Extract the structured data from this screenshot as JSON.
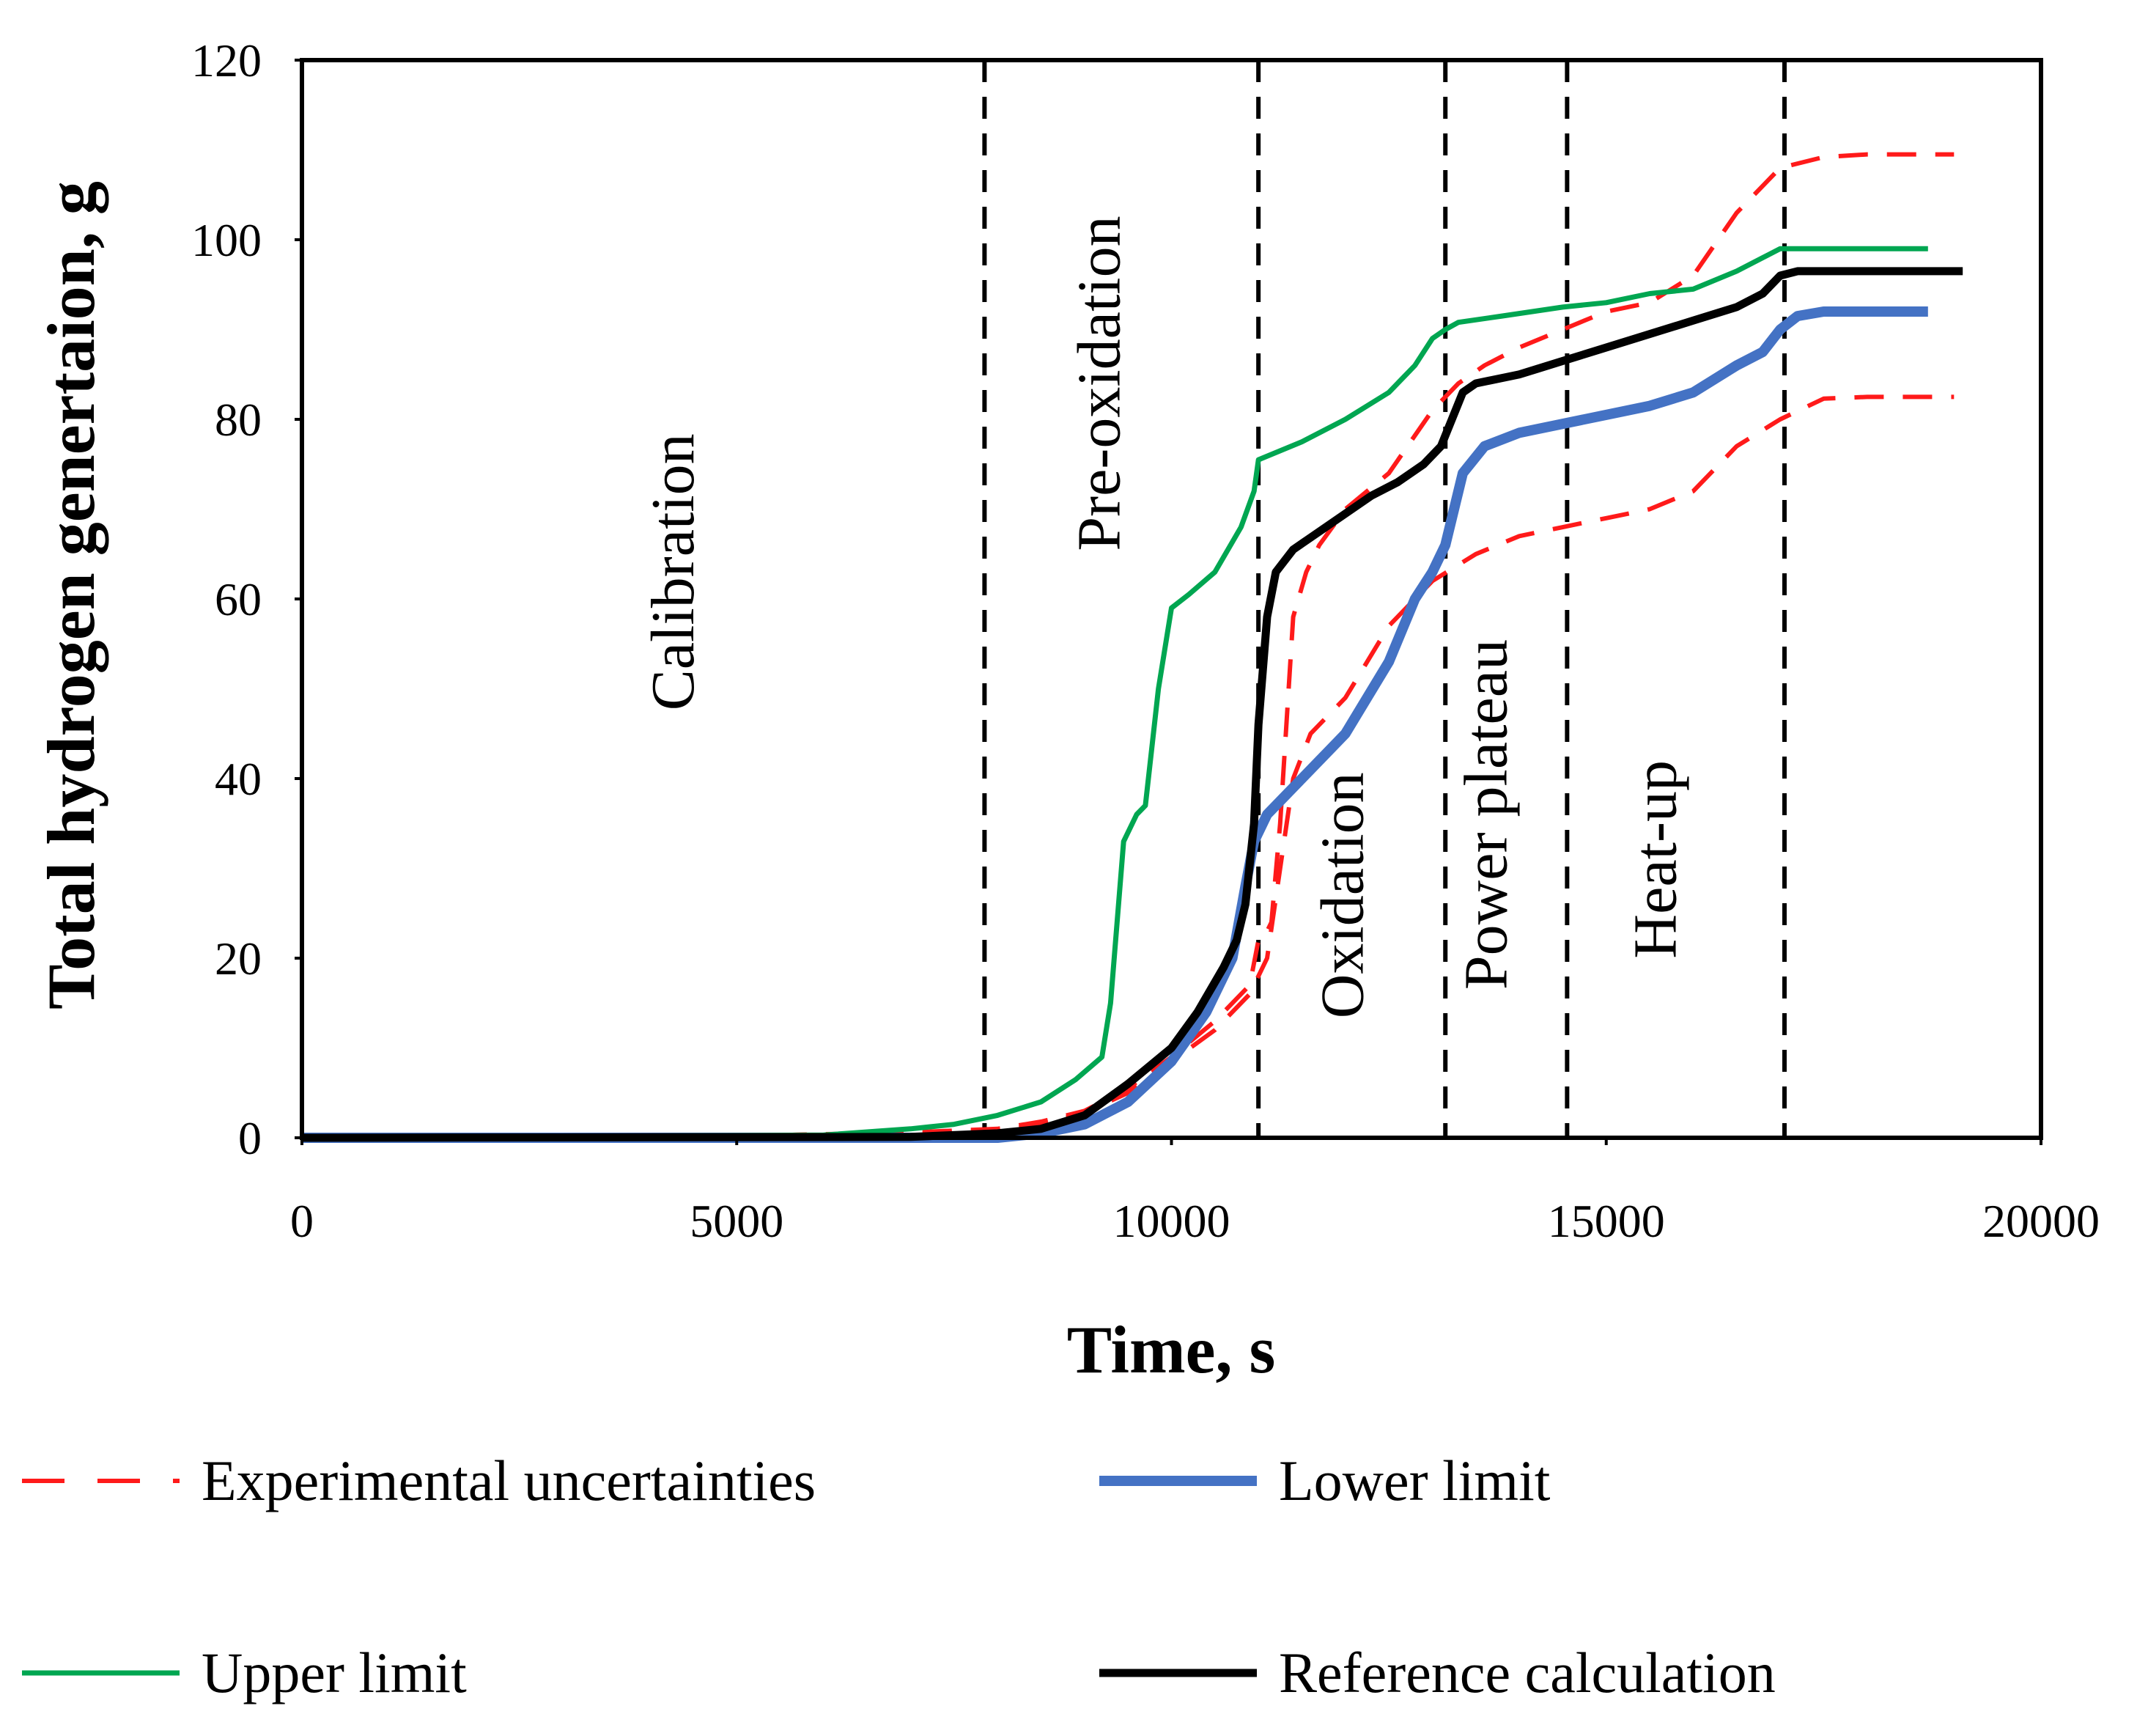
{
  "chart_data": {
    "type": "line",
    "title": "",
    "xlabel": "Time, s",
    "ylabel": "Total hydrogen genertaion, g",
    "xlim": [
      0,
      20000
    ],
    "ylim": [
      0,
      120
    ],
    "xticks": [
      0,
      5000,
      10000,
      15000,
      20000
    ],
    "yticks": [
      0,
      20,
      40,
      60,
      80,
      100,
      120
    ],
    "grid": false,
    "legend_position": "bottom",
    "phase_boundaries": [
      7850,
      11000,
      13150,
      14550,
      17050
    ],
    "phases": [
      {
        "label": "Calibration",
        "x": 4500,
        "y": 63
      },
      {
        "label": "Pre-oxidation",
        "x": 9400,
        "y": 84
      },
      {
        "label": "Oxidation",
        "x": 12200,
        "y": 27
      },
      {
        "label": "Power plateau",
        "x": 13850,
        "y": 36
      },
      {
        "label": "Heat-up",
        "x": 15800,
        "y": 31
      }
    ],
    "series": [
      {
        "name": "Experimental uncertainties (upper)",
        "legend": "Experimental uncertainties",
        "color": "#ff1a1a",
        "width": 6,
        "dash": "40,26",
        "points": [
          [
            3800,
            0.3
          ],
          [
            5000,
            0.2
          ],
          [
            6000,
            0.4
          ],
          [
            7000,
            0.6
          ],
          [
            8000,
            1
          ],
          [
            8500,
            1.8
          ],
          [
            9000,
            3
          ],
          [
            9500,
            5.5
          ],
          [
            10000,
            9
          ],
          [
            10500,
            13
          ],
          [
            10900,
            17
          ],
          [
            11000,
            22
          ],
          [
            11050,
            22
          ],
          [
            11150,
            24
          ],
          [
            11250,
            35
          ],
          [
            11400,
            58
          ],
          [
            11550,
            63
          ],
          [
            11700,
            66
          ],
          [
            12000,
            70
          ],
          [
            12500,
            74
          ],
          [
            13000,
            81
          ],
          [
            13300,
            84
          ],
          [
            13600,
            86
          ],
          [
            14000,
            88
          ],
          [
            14500,
            90
          ],
          [
            15000,
            92
          ],
          [
            15500,
            93
          ],
          [
            16000,
            96
          ],
          [
            16500,
            103
          ],
          [
            17000,
            108
          ],
          [
            17500,
            109.2
          ],
          [
            18000,
            109.5
          ],
          [
            19000,
            109.5
          ]
        ]
      },
      {
        "name": "Experimental uncertainties (lower)",
        "legend": "",
        "color": "#ff1a1a",
        "width": 6,
        "dash": "40,26",
        "points": [
          [
            3800,
            0.3
          ],
          [
            5000,
            0.2
          ],
          [
            6000,
            0.4
          ],
          [
            7000,
            0.5
          ],
          [
            8000,
            0.8
          ],
          [
            8500,
            1.5
          ],
          [
            9000,
            2.8
          ],
          [
            9500,
            5
          ],
          [
            10000,
            8.5
          ],
          [
            10500,
            12
          ],
          [
            10900,
            16
          ],
          [
            11100,
            20
          ],
          [
            11250,
            30
          ],
          [
            11400,
            40
          ],
          [
            11600,
            45
          ],
          [
            12000,
            49
          ],
          [
            12500,
            57
          ],
          [
            13000,
            62
          ],
          [
            13500,
            65
          ],
          [
            14000,
            67
          ],
          [
            14500,
            68
          ],
          [
            15000,
            69
          ],
          [
            15500,
            70
          ],
          [
            16000,
            72
          ],
          [
            16500,
            77
          ],
          [
            17000,
            80
          ],
          [
            17500,
            82.3
          ],
          [
            18000,
            82.5
          ],
          [
            19000,
            82.5
          ]
        ]
      },
      {
        "name": "Lower limit",
        "legend": "Lower limit",
        "color": "#4472c4",
        "width": 14,
        "dash": "",
        "points": [
          [
            0,
            0
          ],
          [
            7000,
            0
          ],
          [
            8000,
            0
          ],
          [
            8500,
            0.5
          ],
          [
            9000,
            1.5
          ],
          [
            9500,
            4
          ],
          [
            10000,
            8.5
          ],
          [
            10400,
            14
          ],
          [
            10700,
            20
          ],
          [
            10850,
            28
          ],
          [
            10950,
            33
          ],
          [
            11100,
            36
          ],
          [
            11500,
            40
          ],
          [
            12000,
            45
          ],
          [
            12500,
            53
          ],
          [
            12800,
            60
          ],
          [
            13000,
            63
          ],
          [
            13150,
            66
          ],
          [
            13350,
            74
          ],
          [
            13600,
            77
          ],
          [
            14000,
            78.5
          ],
          [
            14500,
            79.5
          ],
          [
            15000,
            80.5
          ],
          [
            15500,
            81.5
          ],
          [
            16000,
            83
          ],
          [
            16500,
            86
          ],
          [
            16800,
            87.5
          ],
          [
            17000,
            90
          ],
          [
            17200,
            91.5
          ],
          [
            17500,
            92
          ],
          [
            18000,
            92
          ],
          [
            18700,
            92
          ]
        ]
      },
      {
        "name": "Upper limit",
        "legend": "Upper limit",
        "color": "#00a651",
        "width": 7,
        "dash": "",
        "points": [
          [
            0,
            0
          ],
          [
            6000,
            0.3
          ],
          [
            7000,
            1
          ],
          [
            7500,
            1.5
          ],
          [
            8000,
            2.5
          ],
          [
            8500,
            4
          ],
          [
            8900,
            6.5
          ],
          [
            9200,
            9
          ],
          [
            9300,
            15
          ],
          [
            9450,
            33
          ],
          [
            9600,
            36
          ],
          [
            9700,
            37
          ],
          [
            9850,
            50
          ],
          [
            10000,
            59
          ],
          [
            10200,
            60.5
          ],
          [
            10500,
            63
          ],
          [
            10800,
            68
          ],
          [
            10950,
            72
          ],
          [
            11000,
            75.5
          ],
          [
            11500,
            77.5
          ],
          [
            12000,
            80
          ],
          [
            12500,
            83
          ],
          [
            12800,
            86
          ],
          [
            13000,
            89
          ],
          [
            13150,
            90
          ],
          [
            13300,
            90.8
          ],
          [
            13800,
            91.5
          ],
          [
            14500,
            92.5
          ],
          [
            15000,
            93
          ],
          [
            15500,
            94
          ],
          [
            16000,
            94.5
          ],
          [
            16500,
            96.5
          ],
          [
            16800,
            98
          ],
          [
            17000,
            99
          ],
          [
            17500,
            99
          ],
          [
            18000,
            99
          ],
          [
            18700,
            99
          ]
        ]
      },
      {
        "name": "Reference calculation",
        "legend": "Reference calculation",
        "color": "#000000",
        "width": 11,
        "dash": "",
        "points": [
          [
            0,
            0
          ],
          [
            7000,
            0.1
          ],
          [
            8000,
            0.5
          ],
          [
            8500,
            1
          ],
          [
            9000,
            2.5
          ],
          [
            9500,
            6
          ],
          [
            10000,
            10
          ],
          [
            10300,
            14
          ],
          [
            10600,
            19
          ],
          [
            10750,
            22
          ],
          [
            10850,
            26
          ],
          [
            10950,
            35
          ],
          [
            11000,
            46
          ],
          [
            11100,
            58
          ],
          [
            11200,
            63
          ],
          [
            11400,
            65.5
          ],
          [
            11700,
            67.5
          ],
          [
            12000,
            69.5
          ],
          [
            12300,
            71.5
          ],
          [
            12600,
            73
          ],
          [
            12900,
            75
          ],
          [
            13100,
            77
          ],
          [
            13350,
            83
          ],
          [
            13500,
            84
          ],
          [
            14000,
            85
          ],
          [
            14500,
            86.5
          ],
          [
            15000,
            88
          ],
          [
            15500,
            89.5
          ],
          [
            16000,
            91
          ],
          [
            16500,
            92.5
          ],
          [
            16800,
            94
          ],
          [
            17000,
            96
          ],
          [
            17200,
            96.5
          ],
          [
            18000,
            96.5
          ],
          [
            19100,
            96.5
          ]
        ]
      }
    ]
  }
}
